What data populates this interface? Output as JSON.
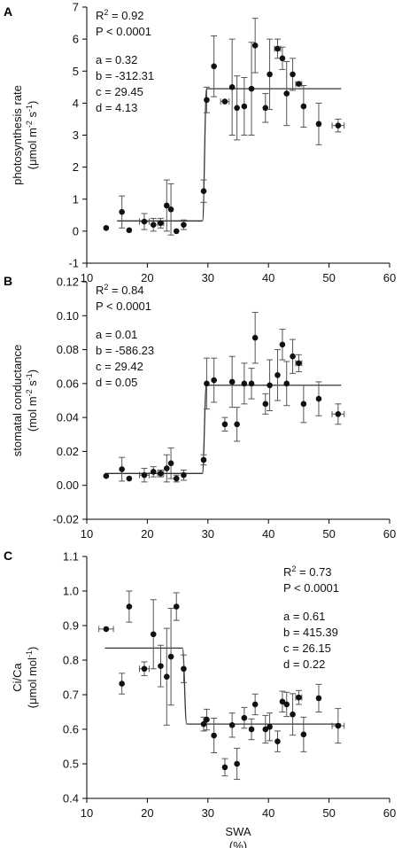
{
  "chart_data": [
    {
      "type": "scatter",
      "panel_letter": "A",
      "ylabel_lines": [
        "photosynthesis rate",
        "(μmol m",
        "-2",
        " s",
        "-1",
        ")"
      ],
      "xlabel": "",
      "xlabel_unit": "",
      "xlim": [
        10,
        60
      ],
      "ylim": [
        -1,
        7
      ],
      "xticks": [
        10,
        20,
        30,
        40,
        50,
        60
      ],
      "yticks": [
        -1,
        0,
        1,
        2,
        3,
        4,
        5,
        6,
        7
      ],
      "ytick_labels": [
        "-1",
        "0",
        "1",
        "2",
        "3",
        "4",
        "5",
        "6",
        "7"
      ],
      "annotation_side": "left",
      "stats": {
        "r2_prefix": "R",
        "r2_sup": "2",
        "r2_value": " = 0.92",
        "p_text": "P < 0.0001"
      },
      "params": [
        "a = 0.32",
        "b = -312.31",
        "c = 29.45",
        "d = 4.13"
      ],
      "fit": {
        "low": 0.32,
        "high": 4.45,
        "x0": 29.45,
        "xmin": 15,
        "xmax": 52
      },
      "points": [
        {
          "x": 13.2,
          "y": 0.1,
          "xerr": 0,
          "yerr": 0
        },
        {
          "x": 15.8,
          "y": 0.6,
          "xerr": 0,
          "yerr": 0.5
        },
        {
          "x": 17.0,
          "y": 0.03,
          "xerr": 0,
          "yerr": 0
        },
        {
          "x": 19.5,
          "y": 0.3,
          "xerr": 0.8,
          "yerr": 0.25
        },
        {
          "x": 21.0,
          "y": 0.2,
          "xerr": 0,
          "yerr": 0.2
        },
        {
          "x": 22.2,
          "y": 0.25,
          "xerr": 0.5,
          "yerr": 0.15
        },
        {
          "x": 23.2,
          "y": 0.8,
          "xerr": 0,
          "yerr": 0.8
        },
        {
          "x": 23.9,
          "y": 0.68,
          "xerr": 0,
          "yerr": 0.8
        },
        {
          "x": 24.8,
          "y": 0.0,
          "xerr": 0,
          "yerr": 0
        },
        {
          "x": 26.0,
          "y": 0.2,
          "xerr": 0,
          "yerr": 0.15
        },
        {
          "x": 29.3,
          "y": 1.25,
          "xerr": 0,
          "yerr": 0.35
        },
        {
          "x": 29.8,
          "y": 4.1,
          "xerr": 0,
          "yerr": 0.4
        },
        {
          "x": 31.0,
          "y": 5.15,
          "xerr": 0,
          "yerr": 0.95
        },
        {
          "x": 32.8,
          "y": 4.05,
          "xerr": 0.7,
          "yerr": 0
        },
        {
          "x": 34.0,
          "y": 4.5,
          "xerr": 0,
          "yerr": 1.5
        },
        {
          "x": 34.8,
          "y": 3.85,
          "xerr": 0,
          "yerr": 1.0
        },
        {
          "x": 36.0,
          "y": 3.9,
          "xerr": 0,
          "yerr": 0.9
        },
        {
          "x": 37.2,
          "y": 4.45,
          "xerr": 0,
          "yerr": 1.45
        },
        {
          "x": 37.8,
          "y": 5.8,
          "xerr": 0,
          "yerr": 0.85
        },
        {
          "x": 39.5,
          "y": 3.85,
          "xerr": 0,
          "yerr": 0.45
        },
        {
          "x": 40.2,
          "y": 4.9,
          "xerr": 0,
          "yerr": 1.1
        },
        {
          "x": 41.5,
          "y": 5.7,
          "xerr": 0.5,
          "yerr": 0.3
        },
        {
          "x": 42.3,
          "y": 5.4,
          "xerr": 0,
          "yerr": 0.35
        },
        {
          "x": 43.0,
          "y": 4.3,
          "xerr": 0,
          "yerr": 1.0
        },
        {
          "x": 44.0,
          "y": 4.9,
          "xerr": 0,
          "yerr": 0.5
        },
        {
          "x": 45.0,
          "y": 4.6,
          "xerr": 0.5,
          "yerr": 0
        },
        {
          "x": 45.8,
          "y": 3.9,
          "xerr": 0,
          "yerr": 0.65
        },
        {
          "x": 48.3,
          "y": 3.35,
          "xerr": 0,
          "yerr": 0.65
        },
        {
          "x": 51.5,
          "y": 3.3,
          "xerr": 1.0,
          "yerr": 0.2
        }
      ]
    },
    {
      "type": "scatter",
      "panel_letter": "B",
      "ylabel_lines": [
        "stomatal conductance",
        "(mol m",
        "-2",
        " s",
        "-1",
        ")"
      ],
      "xlabel": "",
      "xlabel_unit": "",
      "xlim": [
        10,
        60
      ],
      "ylim": [
        -0.02,
        0.12
      ],
      "xticks": [
        10,
        20,
        30,
        40,
        50,
        60
      ],
      "yticks": [
        -0.02,
        0.0,
        0.02,
        0.04,
        0.06,
        0.08,
        0.1,
        0.12
      ],
      "ytick_labels": [
        "-0.02",
        "0.00",
        "0.02",
        "0.04",
        "0.06",
        "0.08",
        "0.10",
        "0.12"
      ],
      "annotation_side": "left",
      "stats": {
        "r2_prefix": "R",
        "r2_sup": "2",
        "r2_value": " = 0.84",
        "p_text": "P < 0.0001"
      },
      "params": [
        "a = 0.01",
        "b = -586.23",
        "c = 29.42",
        "d = 0.05"
      ],
      "fit": {
        "low": 0.007,
        "high": 0.059,
        "x0": 29.42,
        "xmin": 13,
        "xmax": 52
      },
      "points": [
        {
          "x": 13.2,
          "y": 0.0055,
          "xerr": 0,
          "yerr": 0
        },
        {
          "x": 15.8,
          "y": 0.0095,
          "xerr": 0,
          "yerr": 0.007
        },
        {
          "x": 17.0,
          "y": 0.004,
          "xerr": 0,
          "yerr": 0
        },
        {
          "x": 19.5,
          "y": 0.006,
          "xerr": 0.8,
          "yerr": 0.004
        },
        {
          "x": 21.0,
          "y": 0.008,
          "xerr": 0,
          "yerr": 0.003
        },
        {
          "x": 22.2,
          "y": 0.007,
          "xerr": 0.5,
          "yerr": 0.002
        },
        {
          "x": 23.2,
          "y": 0.01,
          "xerr": 0,
          "yerr": 0.008
        },
        {
          "x": 23.9,
          "y": 0.013,
          "xerr": 0,
          "yerr": 0.009
        },
        {
          "x": 24.8,
          "y": 0.004,
          "xerr": 0,
          "yerr": 0.002
        },
        {
          "x": 26.0,
          "y": 0.006,
          "xerr": 0,
          "yerr": 0.003
        },
        {
          "x": 29.3,
          "y": 0.015,
          "xerr": 0,
          "yerr": 0.003
        },
        {
          "x": 29.8,
          "y": 0.06,
          "xerr": 0,
          "yerr": 0.015
        },
        {
          "x": 31.0,
          "y": 0.062,
          "xerr": 0,
          "yerr": 0.013
        },
        {
          "x": 32.8,
          "y": 0.036,
          "xerr": 0,
          "yerr": 0.004
        },
        {
          "x": 34.0,
          "y": 0.061,
          "xerr": 0,
          "yerr": 0.015
        },
        {
          "x": 34.8,
          "y": 0.036,
          "xerr": 0,
          "yerr": 0.01
        },
        {
          "x": 36.0,
          "y": 0.06,
          "xerr": 0,
          "yerr": 0.012
        },
        {
          "x": 37.2,
          "y": 0.06,
          "xerr": 0,
          "yerr": 0.009
        },
        {
          "x": 37.8,
          "y": 0.087,
          "xerr": 0,
          "yerr": 0.015
        },
        {
          "x": 39.5,
          "y": 0.048,
          "xerr": 0,
          "yerr": 0.006
        },
        {
          "x": 40.2,
          "y": 0.059,
          "xerr": 0,
          "yerr": 0.015
        },
        {
          "x": 41.5,
          "y": 0.065,
          "xerr": 0,
          "yerr": 0.015
        },
        {
          "x": 42.3,
          "y": 0.083,
          "xerr": 0,
          "yerr": 0.009
        },
        {
          "x": 43.0,
          "y": 0.06,
          "xerr": 0,
          "yerr": 0.013
        },
        {
          "x": 44.0,
          "y": 0.076,
          "xerr": 0,
          "yerr": 0.01
        },
        {
          "x": 45.0,
          "y": 0.072,
          "xerr": 0.5,
          "yerr": 0.005
        },
        {
          "x": 45.8,
          "y": 0.048,
          "xerr": 0,
          "yerr": 0.011
        },
        {
          "x": 48.3,
          "y": 0.051,
          "xerr": 0,
          "yerr": 0.01
        },
        {
          "x": 51.5,
          "y": 0.042,
          "xerr": 1.0,
          "yerr": 0.006
        }
      ]
    },
    {
      "type": "scatter",
      "panel_letter": "C",
      "ylabel_lines": [
        "Ci/Ca",
        "(μmol mol",
        "-1",
        ")",
        "",
        ""
      ],
      "xlabel": "SWA",
      "xlabel_unit": "(%)",
      "xlim": [
        10,
        60
      ],
      "ylim": [
        0.4,
        1.1
      ],
      "xticks": [
        10,
        20,
        30,
        40,
        50,
        60
      ],
      "yticks": [
        0.4,
        0.5,
        0.6,
        0.7,
        0.8,
        0.9,
        1.0,
        1.1
      ],
      "ytick_labels": [
        "0.4",
        "0.5",
        "0.6",
        "0.7",
        "0.8",
        "0.9",
        "1.0",
        "1.1"
      ],
      "annotation_side": "right",
      "stats": {
        "r2_prefix": "R",
        "r2_sup": "2",
        "r2_value": " = 0.73",
        "p_text": "P < 0.0001"
      },
      "params": [
        "a = 0.61",
        "b = 415.39",
        "c = 26.15",
        "d = 0.22"
      ],
      "fit": {
        "low": 0.615,
        "high": 0.835,
        "x0": 26.15,
        "xmin": 13,
        "xmax": 52,
        "descending": true
      },
      "points": [
        {
          "x": 13.2,
          "y": 0.89,
          "xerr": 1.2,
          "yerr": 0
        },
        {
          "x": 15.8,
          "y": 0.732,
          "xerr": 0,
          "yerr": 0.03
        },
        {
          "x": 17.0,
          "y": 0.955,
          "xerr": 0,
          "yerr": 0.045
        },
        {
          "x": 19.5,
          "y": 0.775,
          "xerr": 0.8,
          "yerr": 0.02
        },
        {
          "x": 21.0,
          "y": 0.875,
          "xerr": 0,
          "yerr": 0.1
        },
        {
          "x": 22.2,
          "y": 0.783,
          "xerr": 0,
          "yerr": 0.06
        },
        {
          "x": 23.2,
          "y": 0.752,
          "xerr": 0,
          "yerr": 0.14
        },
        {
          "x": 23.9,
          "y": 0.81,
          "xerr": 0,
          "yerr": 0.14
        },
        {
          "x": 24.8,
          "y": 0.955,
          "xerr": 0,
          "yerr": 0.04
        },
        {
          "x": 26.0,
          "y": 0.775,
          "xerr": 0,
          "yerr": 0.04
        },
        {
          "x": 29.3,
          "y": 0.615,
          "xerr": 0,
          "yerr": 0.02
        },
        {
          "x": 29.8,
          "y": 0.628,
          "xerr": 0,
          "yerr": 0.03
        },
        {
          "x": 31.0,
          "y": 0.582,
          "xerr": 0,
          "yerr": 0.05
        },
        {
          "x": 32.8,
          "y": 0.49,
          "xerr": 0,
          "yerr": 0.025
        },
        {
          "x": 34.0,
          "y": 0.612,
          "xerr": 0,
          "yerr": 0.035
        },
        {
          "x": 34.8,
          "y": 0.5,
          "xerr": 0,
          "yerr": 0.045
        },
        {
          "x": 36.0,
          "y": 0.633,
          "xerr": 0,
          "yerr": 0.03
        },
        {
          "x": 37.2,
          "y": 0.6,
          "xerr": 0,
          "yerr": 0.03
        },
        {
          "x": 37.8,
          "y": 0.672,
          "xerr": 0,
          "yerr": 0.03
        },
        {
          "x": 39.5,
          "y": 0.6,
          "xerr": 0,
          "yerr": 0.04
        },
        {
          "x": 40.2,
          "y": 0.607,
          "xerr": 0,
          "yerr": 0.04
        },
        {
          "x": 41.5,
          "y": 0.565,
          "xerr": 0,
          "yerr": 0.03
        },
        {
          "x": 42.3,
          "y": 0.68,
          "xerr": 0,
          "yerr": 0.03
        },
        {
          "x": 43.0,
          "y": 0.672,
          "xerr": 0,
          "yerr": 0.035
        },
        {
          "x": 44.0,
          "y": 0.643,
          "xerr": 0,
          "yerr": 0.06
        },
        {
          "x": 45.0,
          "y": 0.692,
          "xerr": 0.5,
          "yerr": 0.02
        },
        {
          "x": 45.8,
          "y": 0.585,
          "xerr": 0,
          "yerr": 0.05
        },
        {
          "x": 48.3,
          "y": 0.69,
          "xerr": 0,
          "yerr": 0.04
        },
        {
          "x": 51.5,
          "y": 0.61,
          "xerr": 1.0,
          "yerr": 0.05
        }
      ]
    }
  ]
}
